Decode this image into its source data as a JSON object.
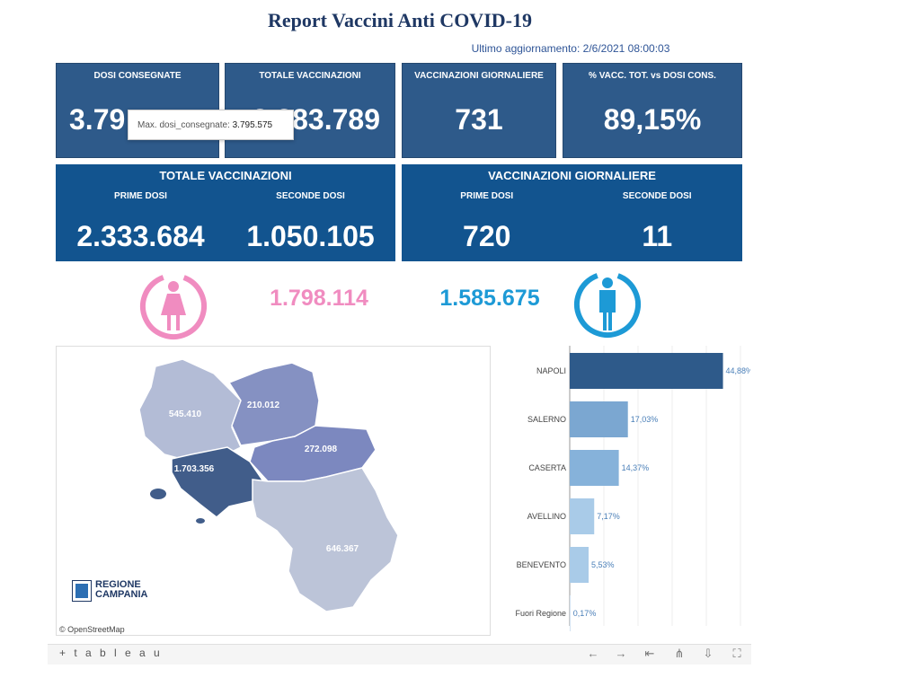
{
  "report": {
    "title": "Report Vaccini Anti COVID-19",
    "last_update": "Ultimo aggiornamento: 2/6/2021  08:00:03"
  },
  "kpis": [
    {
      "label": "DOSI  CONSEGNATE",
      "value": "3.79"
    },
    {
      "label": "TOTALE VACCINAZIONI",
      "value": "3.383.789"
    },
    {
      "label": "VACCINAZIONI GIORNALIERE",
      "value": "731"
    },
    {
      "label": "% VACC. TOT. vs DOSI CONS.",
      "value": "89,15%"
    }
  ],
  "tooltip": {
    "label": "Max. dosi_consegnate:",
    "value": "3.795.575"
  },
  "totale_band": {
    "title": "TOTALE VACCINAZIONI",
    "prime_label": "PRIME DOSI",
    "prime_value": "2.333.684",
    "seconde_label": "SECONDE DOSI",
    "seconde_value": "1.050.105"
  },
  "giornaliere_band": {
    "title": "VACCINAZIONI GIORNALIERE",
    "prime_label": "PRIME DOSI",
    "prime_value": "720",
    "seconde_label": "SECONDE DOSI",
    "seconde_value": "11"
  },
  "gender": {
    "female_value": "1.798.114",
    "male_value": "1.585.675",
    "female_color": "#f08cc0",
    "male_color": "#1d9ad6",
    "female_icon": "female-icon",
    "male_icon": "male-icon"
  },
  "map": {
    "labels": {
      "caserta": "545.410",
      "benevento": "210.012",
      "avellino": "272.098",
      "napoli": "1.703.356",
      "salerno": "646.367"
    },
    "attribution": "© OpenStreetMap",
    "logo_line1": "REGIONE",
    "logo_line2": "CAMPANIA"
  },
  "chart_data": {
    "type": "bar",
    "orientation": "horizontal",
    "categories": [
      "NAPOLI",
      "SALERNO",
      "CASERTA",
      "AVELLINO",
      "BENEVENTO",
      "Fuori Regione"
    ],
    "values": [
      44.88,
      17.03,
      14.37,
      7.17,
      5.53,
      0.17
    ],
    "value_labels": [
      "44,88%",
      "17,03%",
      "14,37%",
      "7,17%",
      "5,53%",
      "0,17%"
    ],
    "colors": [
      "#2e5a8a",
      "#7ba7d1",
      "#86b2da",
      "#a9cbe8",
      "#a9cbe8",
      "#c8dcee"
    ],
    "xlim": [
      0,
      50
    ],
    "grid": true
  },
  "footer": {
    "brand": "+ t a b l e a u",
    "icons": [
      "undo-icon",
      "redo-icon",
      "revert-icon",
      "share-icon",
      "download-icon",
      "fullscreen-icon"
    ]
  }
}
